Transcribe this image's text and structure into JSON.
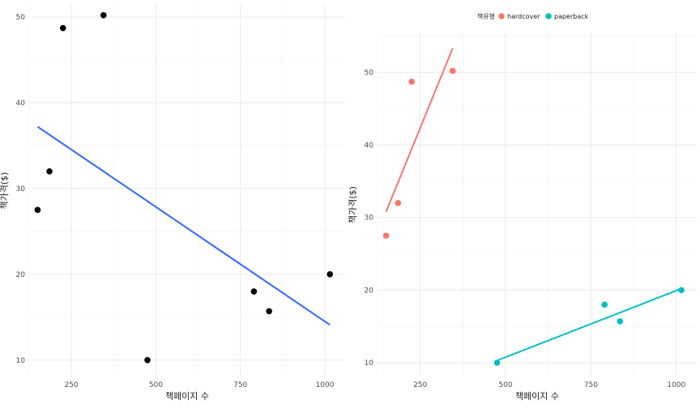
{
  "chart_data": [
    {
      "type": "scatter",
      "title": "",
      "xlabel": "책페이지 수",
      "ylabel": "책가격($)",
      "xlim": [
        125,
        1060
      ],
      "ylim": [
        8,
        51.5
      ],
      "xticks": [
        250,
        500,
        750,
        1000
      ],
      "yticks": [
        10,
        20,
        30,
        40,
        50
      ],
      "grid": true,
      "points": [
        {
          "x": 150,
          "y": 27.5
        },
        {
          "x": 185,
          "y": 32
        },
        {
          "x": 225,
          "y": 48.7
        },
        {
          "x": 345,
          "y": 50.2
        },
        {
          "x": 475,
          "y": 10
        },
        {
          "x": 790,
          "y": 18
        },
        {
          "x": 835,
          "y": 15.7
        },
        {
          "x": 1015,
          "y": 20
        }
      ],
      "trendlines": [
        {
          "color": "#3366ff",
          "x": [
            150,
            1015
          ],
          "y": [
            37.2,
            14.1
          ]
        }
      ],
      "point_color": "#000000"
    },
    {
      "type": "scatter",
      "title": "",
      "xlabel": "책페이지 수",
      "ylabel": "책가격($)",
      "xlim": [
        125,
        1060
      ],
      "ylim": [
        8,
        55.5
      ],
      "xticks": [
        250,
        500,
        750,
        1000
      ],
      "yticks": [
        10,
        20,
        30,
        40,
        50
      ],
      "grid": true,
      "legend": {
        "title": "책유형",
        "placement": "top",
        "entries": [
          {
            "label": "hardcover",
            "color": "#f8766d"
          },
          {
            "label": "paperback",
            "color": "#00bfc4"
          }
        ]
      },
      "series": [
        {
          "name": "hardcover",
          "color": "#f8766d",
          "points": [
            {
              "x": 150,
              "y": 27.5
            },
            {
              "x": 185,
              "y": 32
            },
            {
              "x": 225,
              "y": 48.7
            },
            {
              "x": 345,
              "y": 50.2
            }
          ],
          "trend": {
            "x": [
              150,
              345
            ],
            "y": [
              30.8,
              53.3
            ]
          }
        },
        {
          "name": "paperback",
          "color": "#00bfc4",
          "points": [
            {
              "x": 475,
              "y": 10
            },
            {
              "x": 790,
              "y": 18
            },
            {
              "x": 835,
              "y": 15.7
            },
            {
              "x": 1015,
              "y": 20
            }
          ],
          "trend": {
            "x": [
              475,
              1015
            ],
            "y": [
              10.3,
              20.2
            ]
          }
        }
      ]
    }
  ]
}
